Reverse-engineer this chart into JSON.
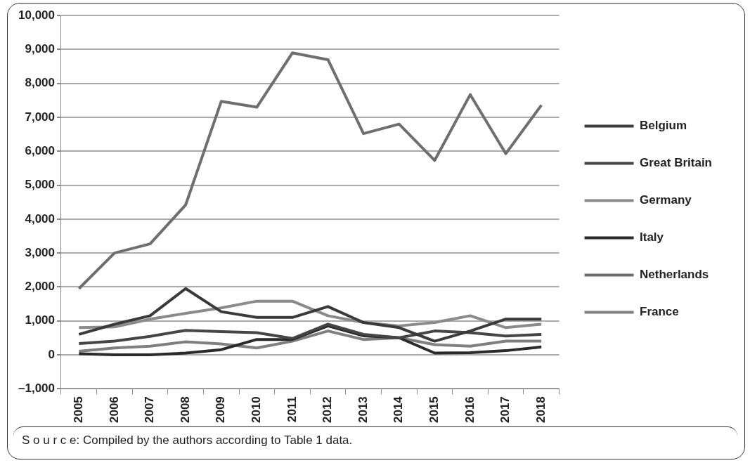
{
  "chart_data": {
    "type": "line",
    "categories": [
      "2005",
      "2006",
      "2007",
      "2008",
      "2009",
      "2010",
      "2011",
      "2012",
      "2013",
      "2014",
      "2015",
      "2016",
      "2017",
      "2018"
    ],
    "series": [
      {
        "name": "Belgium",
        "color": "#3a3a3a",
        "values": [
          600,
          900,
          1150,
          1950,
          1270,
          1100,
          1100,
          1420,
          950,
          800,
          400,
          700,
          1050,
          1050
        ]
      },
      {
        "name": "Great Britain",
        "color": "#454545",
        "values": [
          330,
          400,
          540,
          720,
          680,
          650,
          480,
          900,
          600,
          500,
          700,
          650,
          550,
          600
        ]
      },
      {
        "name": "Germany",
        "color": "#8a8a8a",
        "values": [
          800,
          820,
          1050,
          1220,
          1380,
          1580,
          1580,
          1150,
          950,
          850,
          950,
          1150,
          800,
          900
        ]
      },
      {
        "name": "Italy",
        "color": "#2a2a2a",
        "values": [
          30,
          0,
          0,
          50,
          150,
          450,
          450,
          850,
          560,
          500,
          50,
          60,
          120,
          230
        ]
      },
      {
        "name": "Netherlands",
        "color": "#6e6e6e",
        "values": [
          1950,
          3000,
          3270,
          4420,
          7470,
          7300,
          8900,
          8700,
          6520,
          6800,
          5730,
          7670,
          5930,
          7360
        ]
      },
      {
        "name": "France",
        "color": "#7f7f7f",
        "values": [
          100,
          200,
          250,
          380,
          320,
          200,
          400,
          700,
          450,
          500,
          300,
          250,
          400,
          400
        ]
      }
    ],
    "ylim": [
      -1000,
      10000
    ],
    "yticks": [
      {
        "value": -1000,
        "label": "–1,000"
      },
      0,
      {
        "value": 1000,
        "label": "1,000"
      },
      {
        "value": 2000,
        "label": "2,000"
      },
      {
        "value": 3000,
        "label": "3,000"
      },
      {
        "value": 4000,
        "label": "4,000"
      },
      {
        "value": 5000,
        "label": "5,000"
      },
      {
        "value": 6000,
        "label": "6,000"
      },
      {
        "value": 7000,
        "label": "7,000"
      },
      {
        "value": 8000,
        "label": "8,000"
      },
      {
        "value": 9000,
        "label": "9,000"
      },
      {
        "value": 10000,
        "label": "10,000"
      }
    ],
    "grid": "y",
    "legend": "right",
    "marker": "none",
    "line_style": "solid",
    "annotations": [
      "S o u r c e:  Compiled by the authors according to Table 1 data."
    ]
  }
}
